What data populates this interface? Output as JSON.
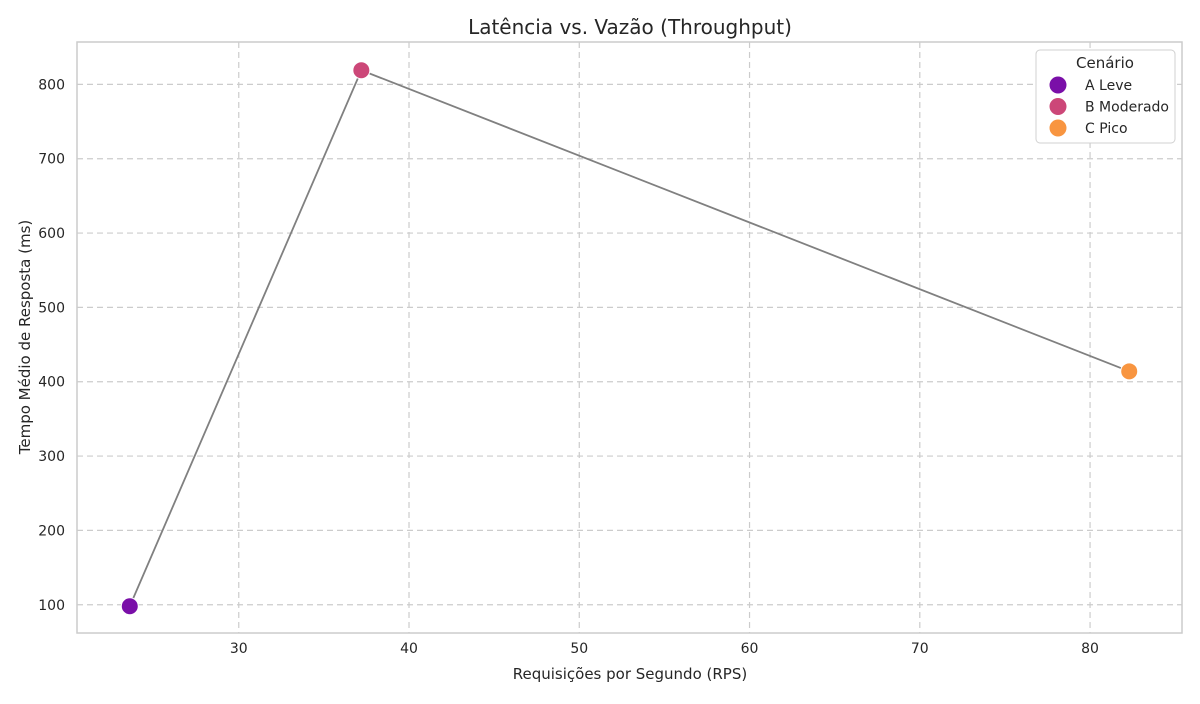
{
  "chart_data": {
    "type": "scatter",
    "title": "Latência vs. Vazão (Throughput)",
    "xlabel": "Requisições por Segundo (RPS)",
    "ylabel": "Tempo Médio de Resposta (ms)",
    "xlim": [
      20.5,
      85.4
    ],
    "ylim": [
      62,
      857
    ],
    "xticks": [
      30,
      40,
      50,
      60,
      70,
      80
    ],
    "yticks": [
      100,
      200,
      300,
      400,
      500,
      600,
      700,
      800
    ],
    "grid": true,
    "legend": {
      "title": "Cenário",
      "position": "top-right"
    },
    "connecting_line": {
      "color": "#808080",
      "order": [
        "A Leve",
        "B Moderado",
        "C Pico"
      ]
    },
    "series": [
      {
        "name": "A Leve",
        "x": 23.6,
        "y": 98,
        "color": "#7a0fa8"
      },
      {
        "name": "B Moderado",
        "x": 37.2,
        "y": 819,
        "color": "#cc4778"
      },
      {
        "name": "C Pico",
        "x": 82.3,
        "y": 414,
        "color": "#f89540"
      }
    ]
  }
}
